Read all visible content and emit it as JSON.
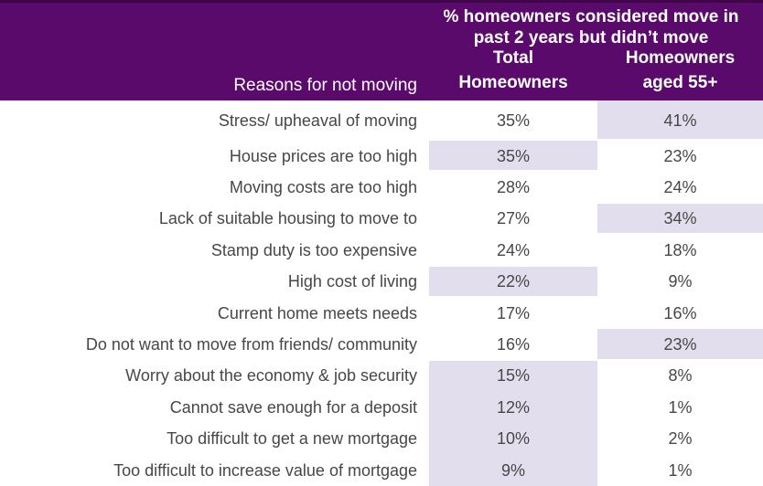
{
  "header": {
    "title_line1": "% homeowners considered move in",
    "title_line2": "past 2 years but didn’t move",
    "reasons_label": "Reasons for not moving",
    "total_col_line1": "Total",
    "total_col_line2": "Homeowners",
    "aged55_col_line1": "Homeowners",
    "aged55_col_line2": "aged 55+"
  },
  "table": {
    "rows": [
      {
        "label": "Stress/ upheaval of moving",
        "total": "35%",
        "total_hl": false,
        "aged55": "41%",
        "aged55_hl": true
      },
      {
        "label": "House prices are too high",
        "total": "35%",
        "total_hl": true,
        "aged55": "23%",
        "aged55_hl": false
      },
      {
        "label": "Moving costs are too high",
        "total": "28%",
        "total_hl": false,
        "aged55": "24%",
        "aged55_hl": false
      },
      {
        "label": "Lack of suitable housing to move to",
        "total": "27%",
        "total_hl": false,
        "aged55": "34%",
        "aged55_hl": true
      },
      {
        "label": "Stamp duty is too expensive",
        "total": "24%",
        "total_hl": false,
        "aged55": "18%",
        "aged55_hl": false
      },
      {
        "label": "High cost of living",
        "total": "22%",
        "total_hl": true,
        "aged55": "9%",
        "aged55_hl": false
      },
      {
        "label": "Current home meets needs",
        "total": "17%",
        "total_hl": false,
        "aged55": "16%",
        "aged55_hl": false
      },
      {
        "label": "Do not want to move from friends/ community",
        "total": "16%",
        "total_hl": false,
        "aged55": "23%",
        "aged55_hl": true
      },
      {
        "label": "Worry about the economy & job security",
        "total": "15%",
        "total_hl": true,
        "aged55": "8%",
        "aged55_hl": false
      },
      {
        "label": "Cannot save enough for a deposit",
        "total": "12%",
        "total_hl": true,
        "aged55": "1%",
        "aged55_hl": false
      },
      {
        "label": "Too difficult to get a new mortgage",
        "total": "10%",
        "total_hl": true,
        "aged55": "2%",
        "aged55_hl": false
      },
      {
        "label": "Too difficult to increase value of mortgage",
        "total": "9%",
        "total_hl": true,
        "aged55": "1%",
        "aged55_hl": false
      }
    ]
  },
  "chart_data": {
    "type": "table",
    "title": "% homeowners considered move in past 2 years but didn’t move",
    "row_header": "Reasons for not moving",
    "unit": "%",
    "categories": [
      "Stress/ upheaval of moving",
      "House prices are too high",
      "Moving costs are too high",
      "Lack of suitable housing to move to",
      "Stamp duty is too expensive",
      "High cost of living",
      "Current home meets needs",
      "Do not want to move from friends/ community",
      "Worry about the economy & job security",
      "Cannot save enough for a deposit",
      "Too difficult to get a new mortgage",
      "Too difficult to increase value of mortgage"
    ],
    "series": [
      {
        "name": "Total Homeowners",
        "values": [
          35,
          35,
          28,
          27,
          24,
          22,
          17,
          16,
          15,
          12,
          10,
          9
        ]
      },
      {
        "name": "Homeowners aged 55+",
        "values": [
          41,
          23,
          24,
          34,
          18,
          9,
          16,
          23,
          8,
          1,
          2,
          1
        ]
      }
    ],
    "highlighted_cells": {
      "Total Homeowners": [
        "House prices are too high",
        "High cost of living",
        "Worry about the economy & job security",
        "Cannot save enough for a deposit",
        "Too difficult to get a new mortgage",
        "Too difficult to increase value of mortgage"
      ],
      "Homeowners aged 55+": [
        "Stress/ upheaval of moving",
        "Lack of suitable housing to move to",
        "Do not want to move from friends/ community"
      ]
    }
  },
  "colors": {
    "header_bg": "#5A0A6A",
    "header_top_border": "#3E0648",
    "header_text": "#FFFFFF",
    "highlight_bg": "#E3DEED",
    "body_text": "#474747",
    "row_bg": "#FFFFFF"
  }
}
